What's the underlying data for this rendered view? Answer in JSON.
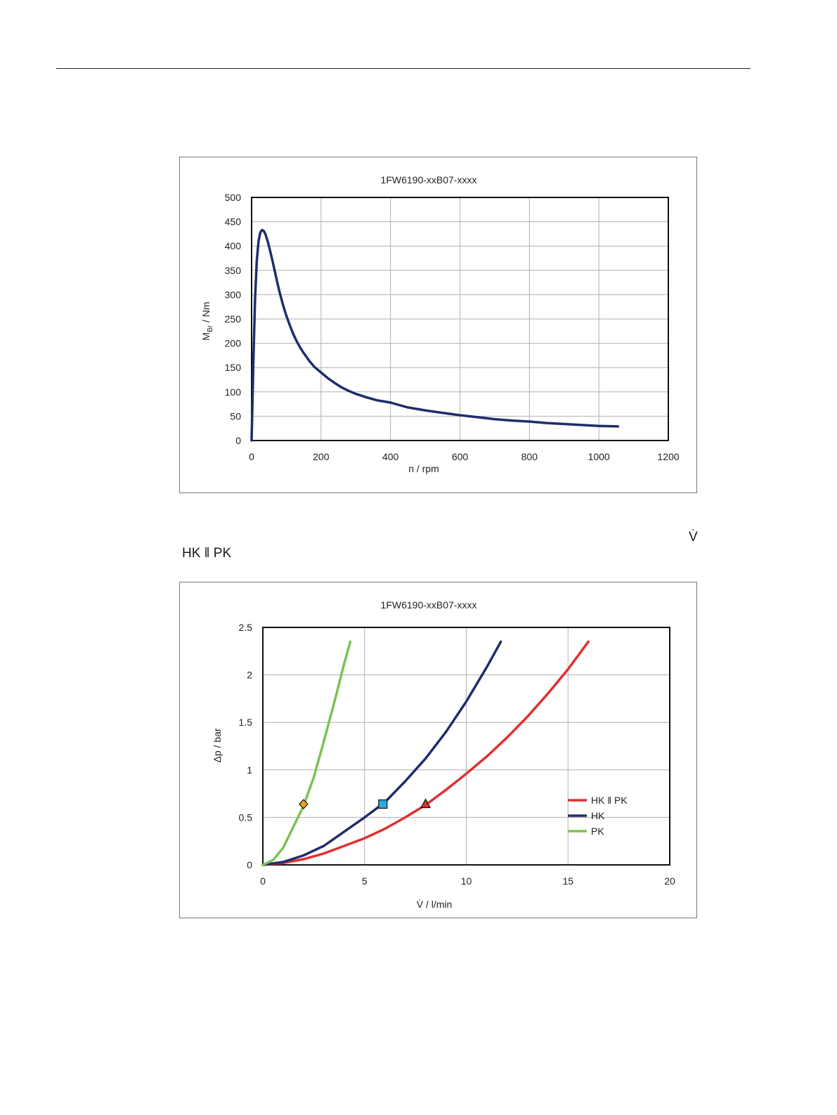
{
  "page": {
    "vdot_symbol": "V̇",
    "hk_pk_label": "HK ‖ PK"
  },
  "chart_data": [
    {
      "type": "line",
      "title": "1FW6190-xxB07-xxxx",
      "xlabel": "n / rpm",
      "ylabel_main": "M",
      "ylabel_sub": "Br",
      "ylabel_rest": " / Nm",
      "xlim": [
        0,
        1200
      ],
      "ylim": [
        0,
        500
      ],
      "xticks": [
        0,
        200,
        400,
        600,
        800,
        1000,
        1200
      ],
      "yticks": [
        0,
        50,
        100,
        150,
        200,
        250,
        300,
        350,
        400,
        450,
        500
      ],
      "grid": true,
      "colors": {
        "line": "#1f2d6b"
      },
      "series": [
        {
          "x": [
            0,
            5,
            10,
            15,
            20,
            25,
            30,
            35,
            40,
            45,
            50,
            60,
            70,
            80,
            90,
            100,
            110,
            120,
            130,
            140,
            150,
            165,
            180,
            200,
            220,
            240,
            260,
            280,
            300,
            330,
            360,
            400,
            450,
            500,
            550,
            600,
            650,
            700,
            750,
            800,
            850,
            900,
            950,
            1000,
            1055
          ],
          "y": [
            0,
            160,
            290,
            370,
            410,
            428,
            433,
            431,
            424,
            413,
            400,
            370,
            338,
            307,
            280,
            257,
            237,
            219,
            204,
            191,
            180,
            165,
            152,
            140,
            128,
            118,
            109,
            102,
            96,
            89,
            83,
            78,
            68,
            62,
            57,
            52,
            48,
            44,
            41,
            39,
            36,
            34,
            32,
            30,
            29
          ]
        }
      ]
    },
    {
      "type": "line",
      "title": "1FW6190-xxB07-xxxx",
      "xlabel": "V̇ / l/min",
      "ylabel": "Δp / bar",
      "xlim": [
        0,
        20
      ],
      "ylim": [
        0,
        2.5
      ],
      "xticks": [
        0,
        5,
        10,
        15,
        20
      ],
      "ytick_labels": [
        "0",
        "0.5",
        "1",
        "1.5",
        "2",
        "2.5"
      ],
      "yticks": [
        0,
        0.5,
        1,
        1.5,
        2,
        2.5
      ],
      "grid": true,
      "legend_position": "lower-right",
      "series": [
        {
          "name": "HK ‖ PK",
          "color": "#e03030",
          "x": [
            0,
            1,
            2,
            3,
            4,
            5,
            6,
            7,
            8,
            9,
            10,
            11,
            12,
            13,
            14,
            15,
            16
          ],
          "y": [
            0,
            0.02,
            0.06,
            0.12,
            0.2,
            0.28,
            0.38,
            0.5,
            0.63,
            0.79,
            0.96,
            1.14,
            1.34,
            1.56,
            1.8,
            2.06,
            2.35
          ],
          "marker": {
            "shape": "triangle",
            "x": 8,
            "y": 0.64,
            "fill": "#e03030"
          }
        },
        {
          "name": "HK",
          "color": "#1f2d6b",
          "x": [
            0,
            1,
            2,
            3,
            4,
            5,
            6,
            7,
            8,
            9,
            10,
            11,
            11.7
          ],
          "y": [
            0,
            0.03,
            0.1,
            0.2,
            0.35,
            0.5,
            0.66,
            0.88,
            1.12,
            1.4,
            1.72,
            2.08,
            2.35
          ],
          "marker": {
            "shape": "square",
            "x": 5.9,
            "y": 0.64,
            "fill": "#2aa8e0"
          }
        },
        {
          "name": "PK",
          "color": "#7dc154",
          "x": [
            0,
            0.5,
            1,
            1.5,
            2,
            2.5,
            3,
            3.5,
            4,
            4.3
          ],
          "y": [
            0,
            0.05,
            0.18,
            0.4,
            0.62,
            0.92,
            1.3,
            1.7,
            2.12,
            2.35
          ],
          "marker": {
            "shape": "diamond",
            "x": 2,
            "y": 0.64,
            "fill": "#f0a020"
          }
        }
      ]
    }
  ]
}
